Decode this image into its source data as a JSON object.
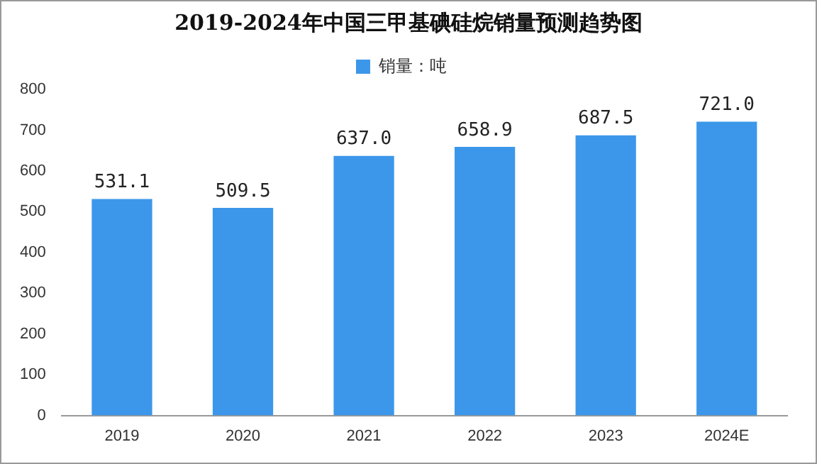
{
  "chart_data": {
    "type": "bar",
    "title": "2019-2024年中国三甲基碘硅烷销量预测趋势图",
    "categories": [
      "2019",
      "2020",
      "2021",
      "2022",
      "2023",
      "2024E"
    ],
    "series": [
      {
        "name": "销量：吨",
        "color": "#3c97ea",
        "values": [
          531.1,
          509.5,
          637.0,
          658.9,
          687.5,
          721.0
        ],
        "value_labels": [
          "531.1",
          "509.5",
          "637.0",
          "658.9",
          "687.5",
          "721.0"
        ]
      }
    ],
    "ylim": [
      0,
      800
    ],
    "yticks": [
      0,
      100,
      200,
      300,
      400,
      500,
      600,
      700,
      800
    ],
    "grid": false,
    "legend": "top"
  }
}
